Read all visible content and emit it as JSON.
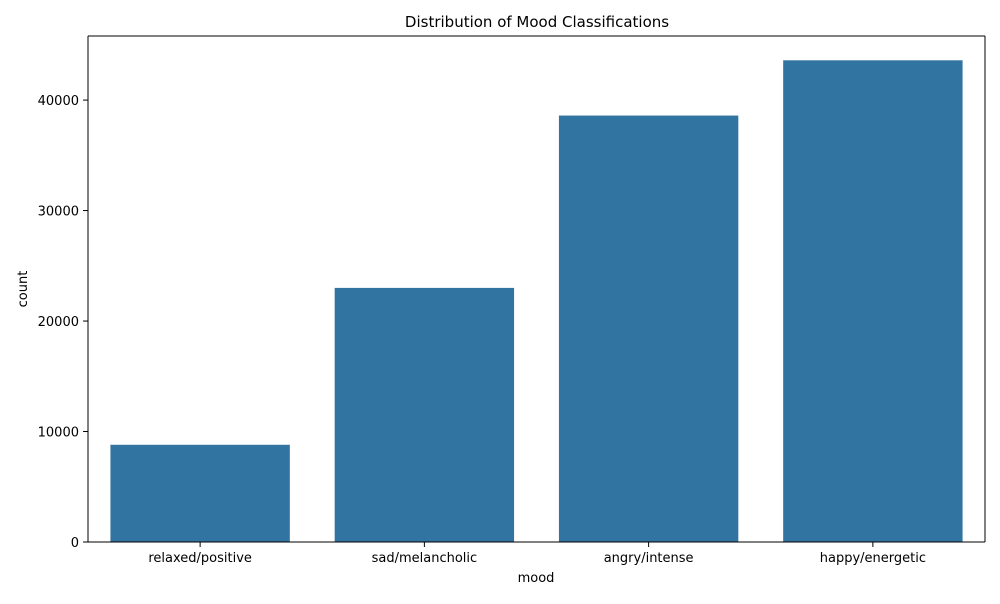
{
  "chart_data": {
    "type": "bar",
    "title": "Distribution of Mood Classifications",
    "xlabel": "mood",
    "ylabel": "count",
    "categories": [
      "relaxed/positive",
      "sad/melancholic",
      "angry/intense",
      "happy/energetic"
    ],
    "values": [
      8800,
      23000,
      38600,
      43600
    ],
    "ylim": [
      0,
      45800
    ],
    "yticks": [
      0,
      10000,
      20000,
      30000,
      40000
    ],
    "bar_color": "#3274a1",
    "grid": false,
    "legend": "none"
  }
}
